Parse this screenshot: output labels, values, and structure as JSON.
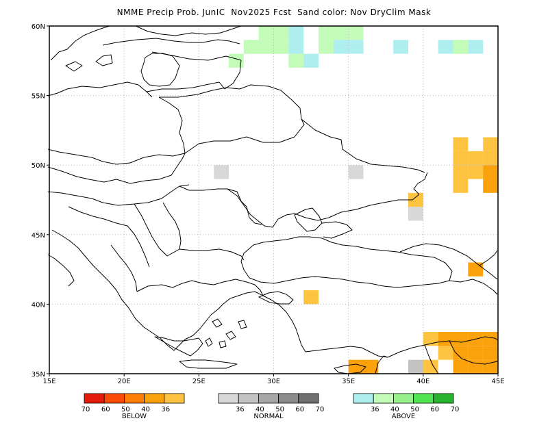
{
  "title": "NMME Precip Prob. JunIC  Nov2025 Fcst  Sand color: Nov DryClim Mask",
  "map": {
    "lon_range": [
      15,
      45
    ],
    "lat_range": [
      35,
      60
    ],
    "x_ticks": [
      "15E",
      "20E",
      "25E",
      "30E",
      "35E",
      "40E",
      "45E"
    ],
    "y_ticks": [
      "60N",
      "55N",
      "50N",
      "45N",
      "40N",
      "35N"
    ],
    "cell_size_deg": 1,
    "cells": [
      {
        "lon": 29.5,
        "lat": 59.5,
        "cat": "above",
        "level": "40"
      },
      {
        "lon": 30.5,
        "lat": 59.5,
        "cat": "above",
        "level": "40"
      },
      {
        "lon": 31.5,
        "lat": 59.5,
        "cat": "above",
        "level": "36"
      },
      {
        "lon": 28.5,
        "lat": 58.5,
        "cat": "above",
        "level": "40"
      },
      {
        "lon": 29.5,
        "lat": 58.5,
        "cat": "above",
        "level": "40"
      },
      {
        "lon": 30.5,
        "lat": 58.5,
        "cat": "above",
        "level": "40"
      },
      {
        "lon": 31.5,
        "lat": 58.5,
        "cat": "above",
        "level": "36"
      },
      {
        "lon": 27.5,
        "lat": 57.5,
        "cat": "above",
        "level": "40"
      },
      {
        "lon": 31.5,
        "lat": 57.5,
        "cat": "above",
        "level": "40"
      },
      {
        "lon": 32.5,
        "lat": 57.5,
        "cat": "above",
        "level": "36"
      },
      {
        "lon": 33.5,
        "lat": 59.5,
        "cat": "above",
        "level": "40"
      },
      {
        "lon": 34.5,
        "lat": 59.5,
        "cat": "above",
        "level": "40"
      },
      {
        "lon": 35.5,
        "lat": 59.5,
        "cat": "above",
        "level": "40"
      },
      {
        "lon": 33.5,
        "lat": 58.5,
        "cat": "above",
        "level": "40"
      },
      {
        "lon": 34.5,
        "lat": 58.5,
        "cat": "above",
        "level": "36"
      },
      {
        "lon": 35.5,
        "lat": 58.5,
        "cat": "above",
        "level": "36"
      },
      {
        "lon": 38.5,
        "lat": 58.5,
        "cat": "above",
        "level": "36"
      },
      {
        "lon": 41.5,
        "lat": 58.5,
        "cat": "above",
        "level": "36"
      },
      {
        "lon": 42.5,
        "lat": 58.5,
        "cat": "above",
        "level": "40"
      },
      {
        "lon": 43.5,
        "lat": 58.5,
        "cat": "above",
        "level": "36"
      },
      {
        "lon": 26.5,
        "lat": 49.5,
        "cat": "normal",
        "level": "36"
      },
      {
        "lon": 35.5,
        "lat": 49.5,
        "cat": "normal",
        "level": "36"
      },
      {
        "lon": 39.5,
        "lat": 46.5,
        "cat": "normal",
        "level": "36"
      },
      {
        "lon": 39.5,
        "lat": 35.5,
        "cat": "normal",
        "level": "40"
      },
      {
        "lon": 42.5,
        "lat": 51.5,
        "cat": "below",
        "level": "36"
      },
      {
        "lon": 44.5,
        "lat": 51.5,
        "cat": "below",
        "level": "36"
      },
      {
        "lon": 42.5,
        "lat": 50.5,
        "cat": "below",
        "level": "36"
      },
      {
        "lon": 43.5,
        "lat": 50.5,
        "cat": "below",
        "level": "36"
      },
      {
        "lon": 44.5,
        "lat": 50.5,
        "cat": "below",
        "level": "36"
      },
      {
        "lon": 42.5,
        "lat": 49.5,
        "cat": "below",
        "level": "36"
      },
      {
        "lon": 43.5,
        "lat": 49.5,
        "cat": "below",
        "level": "36"
      },
      {
        "lon": 44.5,
        "lat": 49.5,
        "cat": "below",
        "level": "40"
      },
      {
        "lon": 42.5,
        "lat": 48.5,
        "cat": "below",
        "level": "36"
      },
      {
        "lon": 44.5,
        "lat": 48.5,
        "cat": "below",
        "level": "40"
      },
      {
        "lon": 39.5,
        "lat": 47.5,
        "cat": "below",
        "level": "36"
      },
      {
        "lon": 43.5,
        "lat": 42.5,
        "cat": "below",
        "level": "40"
      },
      {
        "lon": 32.5,
        "lat": 40.5,
        "cat": "below",
        "level": "36"
      },
      {
        "lon": 40.5,
        "lat": 37.5,
        "cat": "below",
        "level": "36"
      },
      {
        "lon": 41.5,
        "lat": 37.5,
        "cat": "below",
        "level": "40"
      },
      {
        "lon": 42.5,
        "lat": 37.5,
        "cat": "below",
        "level": "40"
      },
      {
        "lon": 43.5,
        "lat": 37.5,
        "cat": "below",
        "level": "40"
      },
      {
        "lon": 44.5,
        "lat": 37.5,
        "cat": "below",
        "level": "40"
      },
      {
        "lon": 41.5,
        "lat": 36.5,
        "cat": "below",
        "level": "36"
      },
      {
        "lon": 42.5,
        "lat": 36.5,
        "cat": "below",
        "level": "40"
      },
      {
        "lon": 43.5,
        "lat": 36.5,
        "cat": "below",
        "level": "40"
      },
      {
        "lon": 44.5,
        "lat": 36.5,
        "cat": "below",
        "level": "40"
      },
      {
        "lon": 35.5,
        "lat": 35.5,
        "cat": "below",
        "level": "40"
      },
      {
        "lon": 36.5,
        "lat": 35.5,
        "cat": "below",
        "level": "40"
      },
      {
        "lon": 40.5,
        "lat": 35.5,
        "cat": "below",
        "level": "36"
      },
      {
        "lon": 42.5,
        "lat": 35.5,
        "cat": "below",
        "level": "40"
      },
      {
        "lon": 43.5,
        "lat": 35.5,
        "cat": "below",
        "level": "40"
      },
      {
        "lon": 44.5,
        "lat": 35.5,
        "cat": "below",
        "level": "40"
      },
      {
        "lon": 35.5,
        "lat": 34.5,
        "cat": "below",
        "level": "40"
      },
      {
        "lon": 36.5,
        "lat": 34.5,
        "cat": "below",
        "level": "36"
      }
    ]
  },
  "legend": {
    "below": {
      "label": "BELOW",
      "values": [
        "70",
        "60",
        "50",
        "40",
        "36"
      ],
      "colors": [
        "#e51c0b",
        "#fb4c07",
        "#fd7d07",
        "#fba10c",
        "#fec340"
      ]
    },
    "normal": {
      "label": "NORMAL",
      "values": [
        "36",
        "40",
        "50",
        "60",
        "70"
      ],
      "colors": [
        "#d8d8d8",
        "#c2c2c2",
        "#a7a7a7",
        "#8b8b8b",
        "#707070"
      ]
    },
    "above": {
      "label": "ABOVE",
      "values": [
        "36",
        "40",
        "50",
        "60",
        "70"
      ],
      "colors": [
        "#aeeeef",
        "#c3fbb9",
        "#97f08b",
        "#51e553",
        "#2ab32e"
      ]
    }
  },
  "colors": {
    "frame": "#000000",
    "borders": "#000000",
    "grid": "#b3b3b3"
  }
}
